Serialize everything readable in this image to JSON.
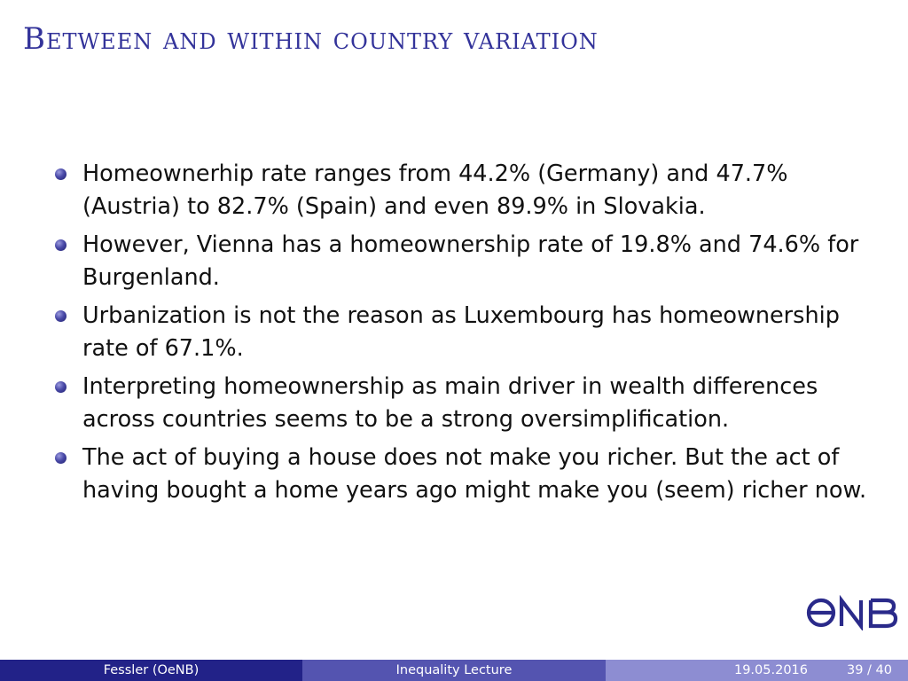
{
  "slide": {
    "title": "Between and within country variation"
  },
  "bullets": [
    "Homeownerhip rate ranges from 44.2% (Germany) and 47.7% (Austria) to 82.7% (Spain) and even 89.9% in Slovakia.",
    "However, Vienna has a homeownership rate of 19.8% and 74.6% for Burgenland.",
    "Urbanization is not the reason as Luxembourg has homeownership rate of 67.1%.",
    "Interpreting homeownership as main driver in wealth differences across countries seems to be a strong oversimplification.",
    "The act of buying a house does not make you richer. But the act of having bought a home years ago might make you (seem) richer now."
  ],
  "logo": {
    "text": "ONB",
    "icon": "onb-logo-icon"
  },
  "footer": {
    "author": "Fessler (OeNB)",
    "lecture": "Inequality Lecture",
    "date": "19.05.2016",
    "page": "39 / 40"
  },
  "colors": {
    "title": "#33339a",
    "footer_left": "#222288",
    "footer_center": "#5454b0",
    "footer_right": "#8d8dd2",
    "logo": "#2a2a8a"
  }
}
